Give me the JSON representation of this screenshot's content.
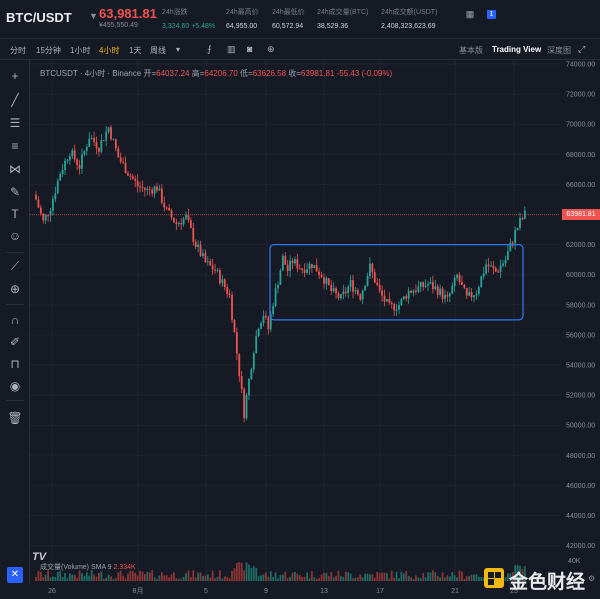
{
  "header": {
    "pair": "BTC/USDT",
    "price": "63,981.81",
    "price_cny": "¥455,550.49",
    "stats": [
      {
        "label": "24h涨跌",
        "value": "3,324.60 +5.48%",
        "up": true
      },
      {
        "label": "24h最高价",
        "value": "64,955.00"
      },
      {
        "label": "24h最低价",
        "value": "60,572.94"
      },
      {
        "label": "24h成交量(BTC)",
        "value": "38,529.36"
      },
      {
        "label": "24h成交额(USDT)",
        "value": "2,408,323,623.69"
      }
    ],
    "badge": "1"
  },
  "toolbar": {
    "timeframes": [
      "分时",
      "15分钟",
      "1小时",
      "4小时",
      "1天",
      "周线"
    ],
    "active_timeframe": "4小时",
    "views": [
      "基本版",
      "Trading View",
      "深度图"
    ],
    "active_view": "Trading View"
  },
  "legend": {
    "symbol": "BTCUSDT · 4小时 · Binance",
    "open_label": "开=",
    "open": "64037.24",
    "high_label": "高=",
    "high": "64206.70",
    "low_label": "低=",
    "low": "63626.58",
    "close_label": "收=",
    "close": "63981.81",
    "change": "-55.43 (-0.09%)"
  },
  "volume_legend": {
    "label": "成交量(Volume) SMA 9",
    "value": "2.334K"
  },
  "tv_logo": "TV",
  "corner": "✕",
  "watermark": "金色财经",
  "current_price_label": "63981.81",
  "chart_data": {
    "type": "candlestick",
    "y_ticks": [
      74000,
      72000,
      70000,
      68000,
      66000,
      64000,
      62000,
      60000,
      58000,
      56000,
      54000,
      52000,
      50000,
      48000,
      46000,
      44000,
      42000
    ],
    "y_tick_labels": [
      "74000.00",
      "72000.00",
      "70000.00",
      "68000.00",
      "66000.00",
      "64000.00",
      "62000.00",
      "60000.00",
      "58000.00",
      "56000.00",
      "54000.00",
      "52000.00",
      "50000.00",
      "48000.00",
      "46000.00",
      "44000.00",
      "42000.00"
    ],
    "volume_tick": "40K",
    "x_labels": [
      "26",
      "8月",
      "5",
      "9",
      "13",
      "17",
      "21",
      "25"
    ],
    "current_price": 63981.81,
    "close_path": [
      [
        0,
        65000
      ],
      [
        3,
        63500
      ],
      [
        6,
        64500
      ],
      [
        10,
        66800
      ],
      [
        14,
        68200
      ],
      [
        18,
        67200
      ],
      [
        22,
        69200
      ],
      [
        26,
        68500
      ],
      [
        30,
        69800
      ],
      [
        34,
        67800
      ],
      [
        38,
        66800
      ],
      [
        42,
        65900
      ],
      [
        46,
        65600
      ],
      [
        50,
        65800
      ],
      [
        54,
        64200
      ],
      [
        58,
        63400
      ],
      [
        62,
        63800
      ],
      [
        66,
        62000
      ],
      [
        70,
        60800
      ],
      [
        74,
        60300
      ],
      [
        78,
        59200
      ],
      [
        80,
        58600
      ],
      [
        82,
        56100
      ],
      [
        84,
        53500
      ],
      [
        86,
        50800
      ],
      [
        88,
        53000
      ],
      [
        90,
        55100
      ],
      [
        92,
        56700
      ],
      [
        94,
        57400
      ],
      [
        96,
        56400
      ],
      [
        98,
        58200
      ],
      [
        100,
        59600
      ],
      [
        102,
        61100
      ],
      [
        104,
        60300
      ],
      [
        106,
        60900
      ],
      [
        110,
        60400
      ],
      [
        114,
        60700
      ],
      [
        118,
        60000
      ],
      [
        122,
        58900
      ],
      [
        126,
        58400
      ],
      [
        130,
        59400
      ],
      [
        134,
        58600
      ],
      [
        138,
        60500
      ],
      [
        142,
        58800
      ],
      [
        146,
        57800
      ],
      [
        150,
        58000
      ],
      [
        154,
        58900
      ],
      [
        158,
        59100
      ],
      [
        162,
        59400
      ],
      [
        166,
        59000
      ],
      [
        170,
        58300
      ],
      [
        174,
        59900
      ],
      [
        178,
        58400
      ],
      [
        182,
        58900
      ],
      [
        186,
        60700
      ],
      [
        190,
        60200
      ],
      [
        194,
        61000
      ],
      [
        198,
        62800
      ],
      [
        200,
        63500
      ],
      [
        202,
        64000
      ]
    ],
    "range_box": {
      "x0": 62000,
      "x1": 62000,
      "y_high": 62000,
      "y_low": 57000
    }
  }
}
